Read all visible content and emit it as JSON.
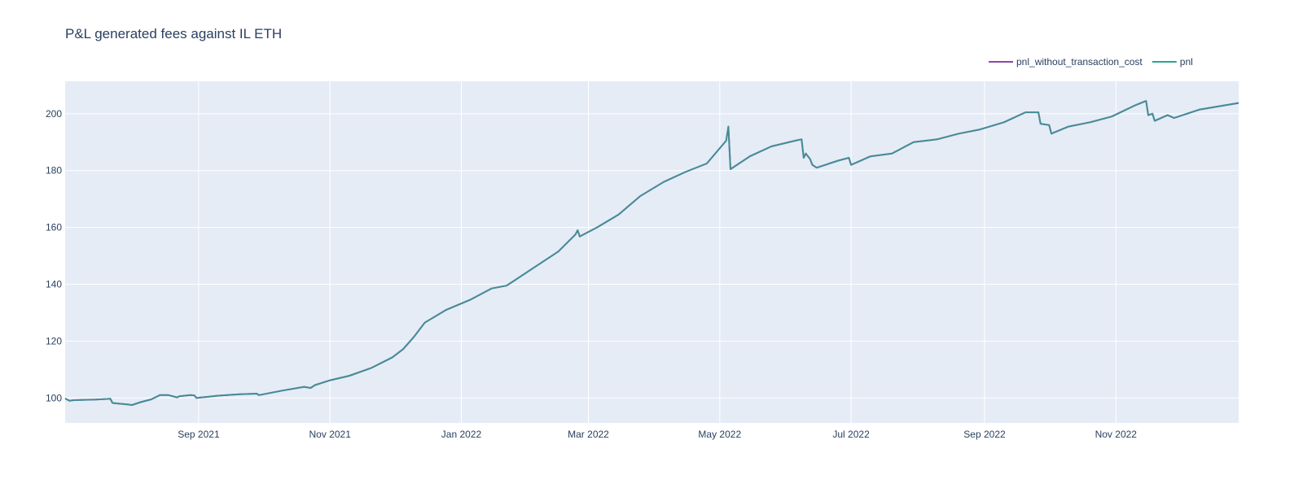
{
  "chart_data": {
    "type": "line",
    "title": "P&L generated fees against IL ETH",
    "xlabel": "",
    "ylabel": "",
    "x_ticks": [
      "Sep 2021",
      "Nov 2021",
      "Jan 2022",
      "Mar 2022",
      "May 2022",
      "Jul 2022",
      "Sep 2022",
      "Nov 2022"
    ],
    "y_ticks": [
      "100",
      "120",
      "140",
      "160",
      "180",
      "200"
    ],
    "xlim": [
      "2021-07-01",
      "2022-12-28"
    ],
    "ylim": [
      91.2,
      211.4
    ],
    "grid": true,
    "legend_position": "top-right",
    "background_color": "#e5ecf6",
    "series": [
      {
        "name": "pnl_without_transaction_cost",
        "color": "#8e44ad",
        "x": [
          "2021-07-01",
          "2021-07-03",
          "2021-07-05",
          "2021-07-15",
          "2021-07-22",
          "2021-07-23",
          "2021-07-30",
          "2021-08-01",
          "2021-08-05",
          "2021-08-10",
          "2021-08-14",
          "2021-08-18",
          "2021-08-22",
          "2021-08-23",
          "2021-08-28",
          "2021-08-30",
          "2021-08-31",
          "2021-09-10",
          "2021-09-20",
          "2021-09-28",
          "2021-09-29",
          "2021-10-10",
          "2021-10-20",
          "2021-10-23",
          "2021-10-25",
          "2021-11-01",
          "2021-11-10",
          "2021-11-20",
          "2021-11-30",
          "2021-12-05",
          "2021-12-10",
          "2021-12-15",
          "2021-12-25",
          "2022-01-05",
          "2022-01-15",
          "2022-01-22",
          "2022-01-25",
          "2022-02-05",
          "2022-02-15",
          "2022-02-23",
          "2022-02-24",
          "2022-02-25",
          "2022-03-05",
          "2022-03-15",
          "2022-03-25",
          "2022-04-05",
          "2022-04-15",
          "2022-04-25",
          "2022-05-04",
          "2022-05-05",
          "2022-05-06",
          "2022-05-15",
          "2022-05-25",
          "2022-06-05",
          "2022-06-08",
          "2022-06-09",
          "2022-06-10",
          "2022-06-12",
          "2022-06-13",
          "2022-06-15",
          "2022-06-25",
          "2022-06-30",
          "2022-07-01",
          "2022-07-10",
          "2022-07-20",
          "2022-07-30",
          "2022-08-10",
          "2022-08-20",
          "2022-08-30",
          "2022-09-10",
          "2022-09-20",
          "2022-09-26",
          "2022-09-27",
          "2022-10-01",
          "2022-10-02",
          "2022-10-10",
          "2022-10-20",
          "2022-10-30",
          "2022-11-10",
          "2022-11-15",
          "2022-11-16",
          "2022-11-18",
          "2022-11-19",
          "2022-11-25",
          "2022-11-28",
          "2022-12-10",
          "2022-12-28"
        ],
        "y": [
          99.8,
          99,
          99.2,
          99.4,
          99.7,
          98.2,
          97.7,
          97.5,
          98.5,
          99.5,
          101,
          101,
          100.2,
          100.6,
          101,
          100.9,
          100,
          100.8,
          101.3,
          101.5,
          101,
          102.6,
          103.9,
          103.5,
          104.5,
          106.2,
          107.8,
          110.5,
          114.3,
          117.2,
          121.5,
          126.5,
          131,
          134.5,
          138.5,
          139.5,
          141,
          146.5,
          151.5,
          157.5,
          159,
          156.8,
          160,
          164.5,
          171,
          176,
          179.5,
          182.5,
          190.5,
          195.5,
          180.5,
          185,
          188.5,
          190.5,
          191,
          184.5,
          186,
          184,
          182,
          181,
          183.5,
          184.5,
          182,
          185,
          186,
          190,
          191,
          193,
          194.5,
          197,
          200.5,
          200.5,
          196.5,
          196,
          193,
          195.5,
          197,
          199,
          203,
          204.5,
          199.5,
          200,
          197.5,
          199.5,
          198.5,
          201.5,
          203.8
        ]
      },
      {
        "name": "pnl",
        "color": "#2ca58d",
        "x": [
          "2021-07-01",
          "2021-07-03",
          "2021-07-05",
          "2021-07-15",
          "2021-07-22",
          "2021-07-23",
          "2021-07-30",
          "2021-08-01",
          "2021-08-05",
          "2021-08-10",
          "2021-08-14",
          "2021-08-18",
          "2021-08-22",
          "2021-08-23",
          "2021-08-28",
          "2021-08-30",
          "2021-08-31",
          "2021-09-10",
          "2021-09-20",
          "2021-09-28",
          "2021-09-29",
          "2021-10-10",
          "2021-10-20",
          "2021-10-23",
          "2021-10-25",
          "2021-11-01",
          "2021-11-10",
          "2021-11-20",
          "2021-11-30",
          "2021-12-05",
          "2021-12-10",
          "2021-12-15",
          "2021-12-25",
          "2022-01-05",
          "2022-01-15",
          "2022-01-22",
          "2022-01-25",
          "2022-02-05",
          "2022-02-15",
          "2022-02-23",
          "2022-02-24",
          "2022-02-25",
          "2022-03-05",
          "2022-03-15",
          "2022-03-25",
          "2022-04-05",
          "2022-04-15",
          "2022-04-25",
          "2022-05-04",
          "2022-05-05",
          "2022-05-06",
          "2022-05-15",
          "2022-05-25",
          "2022-06-05",
          "2022-06-08",
          "2022-06-09",
          "2022-06-10",
          "2022-06-12",
          "2022-06-13",
          "2022-06-15",
          "2022-06-25",
          "2022-06-30",
          "2022-07-01",
          "2022-07-10",
          "2022-07-20",
          "2022-07-30",
          "2022-08-10",
          "2022-08-20",
          "2022-08-30",
          "2022-09-10",
          "2022-09-20",
          "2022-09-26",
          "2022-09-27",
          "2022-10-01",
          "2022-10-02",
          "2022-10-10",
          "2022-10-20",
          "2022-10-30",
          "2022-11-10",
          "2022-11-15",
          "2022-11-16",
          "2022-11-18",
          "2022-11-19",
          "2022-11-25",
          "2022-11-28",
          "2022-12-10",
          "2022-12-28"
        ],
        "y": [
          99.8,
          99,
          99.2,
          99.4,
          99.7,
          98.2,
          97.7,
          97.5,
          98.5,
          99.5,
          101,
          101,
          100.2,
          100.6,
          101,
          100.9,
          100,
          100.8,
          101.3,
          101.5,
          101,
          102.6,
          103.9,
          103.5,
          104.5,
          106.2,
          107.8,
          110.5,
          114.3,
          117.2,
          121.5,
          126.5,
          131,
          134.5,
          138.5,
          139.5,
          141,
          146.5,
          151.5,
          157.5,
          159,
          156.8,
          160,
          164.5,
          171,
          176,
          179.5,
          182.5,
          190.5,
          195.5,
          180.5,
          185,
          188.5,
          190.5,
          191,
          184.5,
          186,
          184,
          182,
          181,
          183.5,
          184.5,
          182,
          185,
          186,
          190,
          191,
          193,
          194.5,
          197,
          200.5,
          200.5,
          196.5,
          196,
          193,
          195.5,
          197,
          199,
          203,
          204.5,
          199.5,
          200,
          197.5,
          199.5,
          198.5,
          201.5,
          203.8
        ]
      }
    ]
  }
}
